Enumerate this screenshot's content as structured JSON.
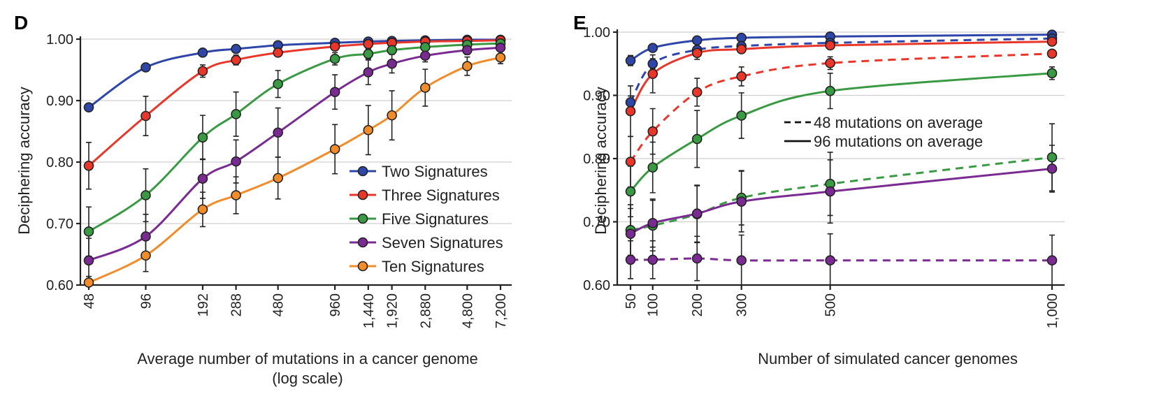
{
  "colors": {
    "Two Signatures": "#2e46a8",
    "Three Signatures": "#e8372a",
    "Five Signatures": "#3a9a44",
    "Seven Signatures": "#7a2b92",
    "Ten Signatures": "#f08c2a",
    "axis": "#222222",
    "grid": "#cfcfcf"
  },
  "chart_data": [
    {
      "panel": "D",
      "type": "line",
      "xscale": "log",
      "xlabel": "Average number of mutations in a cancer genome",
      "xlabel2": "(log scale)",
      "ylabel": "Deciphering accuracy",
      "ylim": [
        0.6,
        1.0
      ],
      "yticks": [
        "0.60",
        "0.70",
        "0.80",
        "0.90",
        "1.00"
      ],
      "x": [
        48,
        96,
        192,
        288,
        480,
        960,
        1440,
        1920,
        2880,
        4800,
        7200
      ],
      "xtick_labels": [
        "48",
        "96",
        "192",
        "288",
        "480",
        "960",
        "1,440",
        "1,920",
        "2,880",
        "4,800",
        "7,200"
      ],
      "grid": true,
      "legend_position": "center-right",
      "legend": [
        "Two Signatures",
        "Three Signatures",
        "Five Signatures",
        "Seven Signatures",
        "Ten Signatures"
      ],
      "series": [
        {
          "name": "Two Signatures",
          "style": "solid",
          "values": [
            0.889,
            0.954,
            0.978,
            0.984,
            0.99,
            0.994,
            0.996,
            0.997,
            0.998,
            0.999,
            0.999
          ],
          "err": [
            0,
            0.004,
            0.004,
            0.004,
            0.003,
            0.002,
            0.002,
            0.002,
            0.001,
            0.001,
            0.001
          ]
        },
        {
          "name": "Three Signatures",
          "style": "solid",
          "values": [
            0.794,
            0.875,
            0.948,
            0.966,
            0.978,
            0.988,
            0.992,
            0.994,
            0.996,
            0.997,
            0.998
          ],
          "err": [
            0.038,
            0.032,
            0.01,
            0.008,
            0.006,
            0.004,
            0.003,
            0.003,
            0.002,
            0.002,
            0.002
          ]
        },
        {
          "name": "Five Signatures",
          "style": "solid",
          "values": [
            0.687,
            0.746,
            0.84,
            0.878,
            0.927,
            0.968,
            0.976,
            0.982,
            0.987,
            0.991,
            0.993
          ],
          "err": [
            0.04,
            0.043,
            0.036,
            0.036,
            0.022,
            0.01,
            0.008,
            0.006,
            0.005,
            0.004,
            0.003
          ]
        },
        {
          "name": "Seven Signatures",
          "style": "solid",
          "values": [
            0.64,
            0.679,
            0.773,
            0.801,
            0.848,
            0.914,
            0.946,
            0.96,
            0.973,
            0.982,
            0.986
          ],
          "err": [
            0.036,
            0.036,
            0.032,
            0.035,
            0.04,
            0.028,
            0.02,
            0.015,
            0.01,
            0.007,
            0.005
          ]
        },
        {
          "name": "Ten Signatures",
          "style": "solid",
          "values": [
            0.604,
            0.648,
            0.723,
            0.746,
            0.774,
            0.821,
            0.852,
            0.876,
            0.921,
            0.956,
            0.97
          ],
          "err": [
            0.01,
            0.026,
            0.028,
            0.03,
            0.034,
            0.04,
            0.04,
            0.04,
            0.03,
            0.015,
            0.01
          ]
        }
      ]
    },
    {
      "panel": "E",
      "type": "line",
      "xscale": "linear",
      "xlabel": "Number of simulated cancer genomes",
      "ylabel": "Deciphering accuracy",
      "ylim": [
        0.6,
        1.0
      ],
      "xlim": [
        50,
        1000
      ],
      "yticks": [
        "0.60",
        "0.70",
        "0.80",
        "0.90",
        "1.00"
      ],
      "x": [
        50,
        100,
        200,
        300,
        500,
        1000
      ],
      "xtick_labels": [
        "50",
        "100",
        "200",
        "300",
        "500",
        "1,000"
      ],
      "grid": true,
      "legend_position": "center-right",
      "legend_styles": [
        {
          "style": "dashed",
          "label": "48 mutations on average"
        },
        {
          "style": "solid",
          "label": "96 mutations on average"
        }
      ],
      "series": [
        {
          "name": "Two Signatures",
          "style": "solid",
          "values": [
            0.955,
            0.975,
            0.987,
            0.991,
            0.993,
            0.996
          ],
          "err": [
            0.008,
            0.004,
            0.003,
            0.002,
            0.002,
            0.002
          ]
        },
        {
          "name": "Two Signatures",
          "style": "dashed",
          "values": [
            0.889,
            0.95,
            0.972,
            0.978,
            0.983,
            0.99
          ],
          "err": [
            0.01,
            0.008,
            0.005,
            0.004,
            0.004,
            0.003
          ]
        },
        {
          "name": "Three Signatures",
          "style": "solid",
          "values": [
            0.875,
            0.934,
            0.967,
            0.973,
            0.979,
            0.985
          ],
          "err": [
            0.04,
            0.03,
            0.01,
            0.006,
            0.005,
            0.004
          ]
        },
        {
          "name": "Three Signatures",
          "style": "dashed",
          "values": [
            0.795,
            0.843,
            0.905,
            0.93,
            0.951,
            0.966
          ],
          "err": [
            0.04,
            0.036,
            0.022,
            0.015,
            0.01,
            0.006
          ]
        },
        {
          "name": "Five Signatures",
          "style": "solid",
          "values": [
            0.748,
            0.786,
            0.831,
            0.868,
            0.907,
            0.935
          ],
          "err": [
            0.04,
            0.04,
            0.045,
            0.036,
            0.028,
            0.01
          ]
        },
        {
          "name": "Five Signatures",
          "style": "dashed",
          "values": [
            0.687,
            0.694,
            0.712,
            0.738,
            0.76,
            0.802
          ],
          "err": [
            0.04,
            0.04,
            0.045,
            0.043,
            0.05,
            0.053
          ]
        },
        {
          "name": "Seven Signatures",
          "style": "solid",
          "values": [
            0.681,
            0.698,
            0.713,
            0.732,
            0.748,
            0.784
          ],
          "err": [
            0.04,
            0.038,
            0.045,
            0.048,
            0.05,
            0.037
          ]
        },
        {
          "name": "Seven Signatures",
          "style": "dashed",
          "values": [
            0.64,
            0.64,
            0.642,
            0.639,
            0.639,
            0.639
          ],
          "err": [
            0.03,
            0.03,
            0.035,
            0.04,
            0.042,
            0.04
          ]
        }
      ]
    }
  ]
}
